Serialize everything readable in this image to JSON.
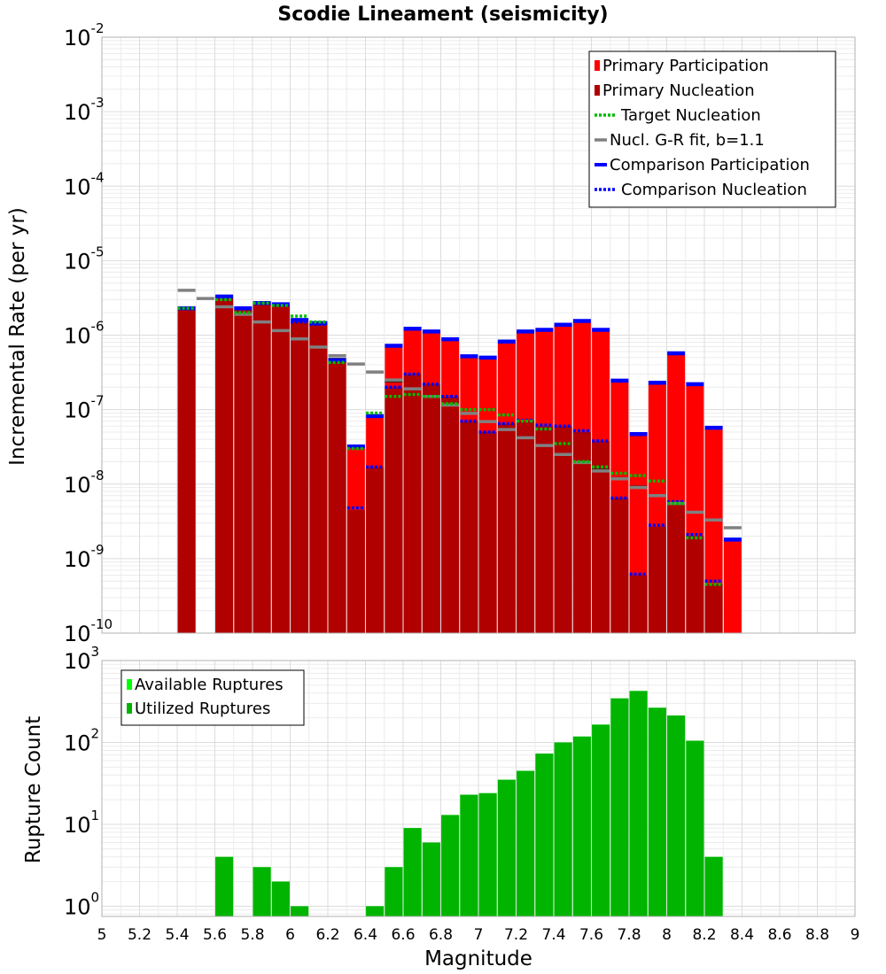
{
  "chart_data": [
    {
      "type": "bar",
      "title": "Scodie Lineament (seismicity)",
      "xlabel": "",
      "ylabel": "Incremental Rate (per yr)",
      "yscale": "log",
      "ylim": [
        1e-10,
        0.01
      ],
      "xlim": [
        5,
        9
      ],
      "grid": true,
      "legend_position": "top-right",
      "x": [
        5.45,
        5.55,
        5.65,
        5.75,
        5.85,
        5.95,
        6.05,
        6.15,
        6.25,
        6.35,
        6.45,
        6.55,
        6.65,
        6.75,
        6.85,
        6.95,
        7.05,
        7.15,
        7.25,
        7.35,
        7.45,
        7.55,
        7.65,
        7.75,
        7.85,
        7.95,
        8.05,
        8.15,
        8.25,
        8.35
      ],
      "series": [
        {
          "name": "Primary Participation",
          "kind": "bar",
          "color": "#ff0000",
          "values": [
            2.2e-06,
            null,
            3.2e-06,
            2.2e-06,
            2.7e-06,
            2.5e-06,
            1.5e-06,
            1.4e-06,
            4.5e-07,
            3e-08,
            8e-08,
            7e-07,
            1.2e-06,
            1.1e-06,
            8.5e-07,
            5e-07,
            4.8e-07,
            8e-07,
            1.1e-06,
            1.15e-06,
            1.35e-06,
            1.5e-06,
            1.15e-06,
            2.4e-07,
            4.5e-08,
            2.2e-07,
            5.5e-07,
            2.1e-07,
            5.5e-08,
            1.8e-09
          ]
        },
        {
          "name": "Primary Nucleation",
          "kind": "bar",
          "color": "#b00000",
          "values": [
            2.2e-06,
            null,
            3.2e-06,
            2.2e-06,
            2.7e-06,
            2.5e-06,
            1.5e-06,
            1.4e-06,
            4.5e-07,
            4.5e-09,
            1.7e-08,
            2e-07,
            3e-07,
            2.2e-07,
            1.5e-07,
            7e-08,
            5e-08,
            6.5e-08,
            7e-08,
            6e-08,
            6e-08,
            5e-08,
            3.8e-08,
            6.5e-09,
            6e-10,
            2.7e-09,
            5.5e-09,
            2e-09,
            4.5e-10,
            null
          ]
        },
        {
          "name": "Target Nucleation",
          "kind": "dotted",
          "color": "#00bb00",
          "values": [
            2.3e-06,
            null,
            3e-06,
            2e-06,
            2.7e-06,
            2.5e-06,
            1.8e-06,
            1.5e-06,
            4.3e-07,
            3e-08,
            9e-08,
            1.5e-07,
            1.6e-07,
            1.5e-07,
            1.2e-07,
            1e-07,
            1e-07,
            8.5e-08,
            7e-08,
            5.5e-08,
            3.5e-08,
            2e-08,
            1.7e-08,
            1.4e-08,
            1.3e-08,
            1.1e-08,
            5.5e-09,
            1.9e-09,
            4.5e-10,
            null
          ]
        },
        {
          "name": "Nucl. G-R fit, b=1.1",
          "kind": "dash",
          "color": "#808080",
          "values": [
            4e-06,
            3.1e-06,
            2.4e-06,
            1.9e-06,
            1.5e-06,
            1.15e-06,
            8.9e-07,
            6.9e-07,
            5.3e-07,
            4.1e-07,
            3.2e-07,
            2.5e-07,
            1.9e-07,
            1.5e-07,
            1.15e-07,
            8.9e-08,
            6.9e-08,
            5.4e-08,
            4.2e-08,
            3.3e-08,
            2.5e-08,
            1.95e-08,
            1.5e-08,
            1.18e-08,
            9e-09,
            7e-09,
            5.5e-09,
            4.2e-09,
            3.3e-09,
            2.6e-09
          ]
        },
        {
          "name": "Comparison Participation",
          "kind": "solid",
          "color": "#0000ff",
          "values": [
            2.3e-06,
            null,
            3.3e-06,
            2.3e-06,
            2.7e-06,
            2.6e-06,
            1.6e-06,
            1.45e-06,
            4.6e-07,
            3.2e-08,
            8.2e-08,
            7.2e-07,
            1.22e-06,
            1.12e-06,
            8.8e-07,
            5.2e-07,
            5e-07,
            8.2e-07,
            1.12e-06,
            1.18e-06,
            1.38e-06,
            1.55e-06,
            1.18e-06,
            2.45e-07,
            4.7e-08,
            2.3e-07,
            5.7e-07,
            2.2e-07,
            5.7e-08,
            1.8e-09
          ]
        },
        {
          "name": "Comparison Nucleation",
          "kind": "dotted",
          "color": "#0000ff",
          "values": [
            2.3e-06,
            null,
            3.2e-06,
            2.3e-06,
            2.7e-06,
            2.6e-06,
            1.5e-06,
            1.4e-06,
            4.5e-07,
            4.8e-09,
            1.7e-08,
            2e-07,
            3e-07,
            2.2e-07,
            1.5e-07,
            7e-08,
            5e-08,
            6.5e-08,
            7.2e-08,
            6.2e-08,
            6e-08,
            5.2e-08,
            3.8e-08,
            6.5e-09,
            6.2e-10,
            2.8e-09,
            5.8e-09,
            2.1e-09,
            5e-10,
            null
          ]
        },
        {
          "name": "",
          "kind": "dash",
          "color": "#222222",
          "values": [
            null,
            null,
            2.4e-06,
            1.9e-06,
            1.5e-06,
            1.15e-06,
            8.9e-07,
            6.9e-07,
            4.8e-07,
            null,
            null,
            2.4e-07,
            1.9e-07,
            1.5e-07,
            1.15e-07,
            8.9e-08,
            6.9e-08,
            5.4e-08,
            4.2e-08,
            3.3e-08,
            2.5e-08,
            1.95e-08,
            1.55e-08,
            1.2e-08,
            9.2e-09,
            7.1e-09,
            5.5e-09,
            4.2e-09,
            3.3e-09,
            null
          ]
        }
      ],
      "yticks": [
        {
          "base": "10",
          "exp": "-10"
        },
        {
          "base": "10",
          "exp": "-9"
        },
        {
          "base": "10",
          "exp": "-8"
        },
        {
          "base": "10",
          "exp": "-7"
        },
        {
          "base": "10",
          "exp": "-6"
        },
        {
          "base": "10",
          "exp": "-5"
        },
        {
          "base": "10",
          "exp": "-4"
        },
        {
          "base": "10",
          "exp": "-3"
        },
        {
          "base": "10",
          "exp": "-2"
        }
      ]
    },
    {
      "type": "bar",
      "title": "",
      "xlabel": "Magnitude",
      "ylabel": "Rupture Count",
      "yscale": "log",
      "ylim": [
        0.75,
        1000
      ],
      "xlim": [
        5,
        9
      ],
      "grid": true,
      "legend_position": "top-left",
      "x": [
        5.45,
        5.55,
        5.65,
        5.75,
        5.85,
        5.95,
        6.05,
        6.15,
        6.25,
        6.35,
        6.45,
        6.55,
        6.65,
        6.75,
        6.85,
        6.95,
        7.05,
        7.15,
        7.25,
        7.35,
        7.45,
        7.55,
        7.65,
        7.75,
        7.85,
        7.95,
        8.05,
        8.15,
        8.25,
        8.35
      ],
      "series": [
        {
          "name": "Available Ruptures",
          "kind": "bar",
          "color": "#00ff00",
          "values": [
            null,
            null,
            4,
            null,
            3,
            2,
            1,
            null,
            null,
            null,
            1,
            3,
            9,
            6,
            13,
            23,
            24,
            35,
            45,
            73,
            100,
            118,
            165,
            345,
            425,
            265,
            213,
            105,
            4,
            null
          ]
        },
        {
          "name": "Utilized Ruptures",
          "kind": "bar",
          "color": "#00b400",
          "values": [
            null,
            null,
            4,
            null,
            3,
            2,
            1,
            null,
            null,
            null,
            1,
            3,
            9,
            6,
            13,
            23,
            24,
            35,
            45,
            73,
            100,
            118,
            165,
            345,
            425,
            265,
            213,
            105,
            4,
            null
          ]
        }
      ],
      "yticks": [
        {
          "base": "10",
          "exp": "0"
        },
        {
          "base": "10",
          "exp": "1"
        },
        {
          "base": "10",
          "exp": "2"
        },
        {
          "base": "10",
          "exp": "3"
        }
      ],
      "xticks": [
        "5",
        "5.2",
        "5.4",
        "5.6",
        "5.8",
        "6",
        "6.2",
        "6.4",
        "6.6",
        "6.8",
        "7",
        "7.2",
        "7.4",
        "7.6",
        "7.8",
        "8",
        "8.2",
        "8.4",
        "8.6",
        "8.8",
        "9"
      ]
    }
  ]
}
